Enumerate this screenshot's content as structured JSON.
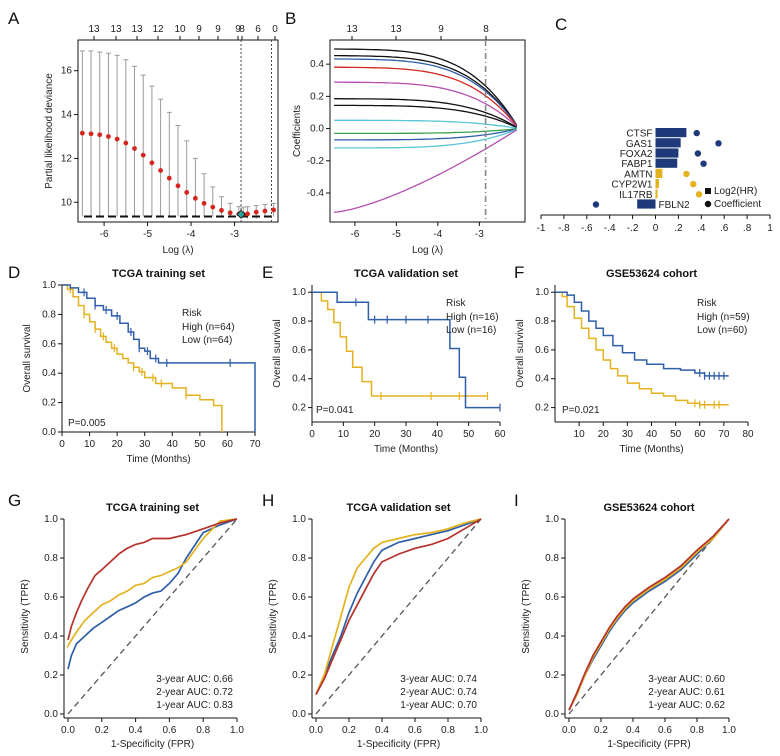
{
  "colors": {
    "blue": "#2f5fa8",
    "yellow": "#e4b21e",
    "red": "#b5312c",
    "navy": "#1f3a7a",
    "gray": "#8a8a8a",
    "black": "#111111"
  },
  "panels": {
    "A": {
      "label": "A",
      "chart_data": {
        "type": "line",
        "top_ticks": [
          "13",
          "13",
          "13",
          "12",
          "10",
          "9",
          "9",
          "9",
          "8",
          "6",
          "0"
        ],
        "xlabel": "Log (λ)",
        "ylabel": "Partial likelihood deviance",
        "xlim": [
          -6.6,
          -2.0
        ],
        "ylim": [
          9.1,
          17.4
        ],
        "x_ticks": [
          "-6",
          "-5",
          "-4",
          "-3"
        ],
        "y_ticks": [
          "10",
          "12",
          "14",
          "16"
        ],
        "x": [
          -6.5,
          -6.3,
          -6.1,
          -5.9,
          -5.7,
          -5.5,
          -5.3,
          -5.1,
          -4.9,
          -4.7,
          -4.5,
          -4.3,
          -4.1,
          -3.9,
          -3.7,
          -3.5,
          -3.3,
          -3.1,
          -2.9,
          -2.8,
          -2.7,
          -2.5,
          -2.3,
          -2.1
        ],
        "mean": [
          13.15,
          13.12,
          13.08,
          13.0,
          12.88,
          12.7,
          12.45,
          12.15,
          11.8,
          11.45,
          11.1,
          10.75,
          10.45,
          10.18,
          9.95,
          9.78,
          9.63,
          9.52,
          9.46,
          9.45,
          9.47,
          9.55,
          9.6,
          9.65
        ],
        "upper": [
          16.9,
          16.9,
          16.85,
          16.8,
          16.7,
          16.5,
          16.2,
          15.8,
          15.3,
          14.7,
          14.1,
          13.5,
          12.8,
          12.0,
          11.3,
          10.7,
          10.25,
          9.95,
          9.8,
          9.78,
          9.8,
          9.85,
          9.9,
          9.95
        ],
        "lower": [
          9.35,
          9.35,
          9.35,
          9.35,
          9.35,
          9.35,
          9.35,
          9.35,
          9.35,
          9.35,
          9.35,
          9.35,
          9.35,
          9.35,
          9.35,
          9.35,
          9.35,
          9.35,
          9.35,
          9.3,
          9.25,
          9.25,
          9.3,
          9.35
        ],
        "vlines": [
          -2.85,
          -2.15
        ],
        "marked_min": -2.85
      }
    },
    "B": {
      "label": "B",
      "chart_data": {
        "type": "line",
        "top_ticks": [
          "13",
          "13",
          "9",
          "8"
        ],
        "xlabel": "Log (λ)",
        "ylabel": "Coefficients",
        "xlim": [
          -6.6,
          -1.9
        ],
        "ylim": [
          -0.58,
          0.55
        ],
        "x_ticks": [
          "-6",
          "-5",
          "-4",
          "-3"
        ],
        "y_ticks": [
          "0.4",
          "0.2",
          "0.0",
          "-0.2",
          "-0.4"
        ],
        "vline": -2.85
      }
    },
    "C": {
      "label": "C",
      "chart_data": {
        "type": "bar",
        "genes": [
          "CTSF",
          "GAS1",
          "FOXA2",
          "FABP1",
          "AMTN",
          "CYP2W1",
          "IL17RB",
          "FBLN2"
        ],
        "log2hr": [
          0.27,
          0.22,
          0.2,
          0.19,
          0.06,
          0.03,
          0.01,
          -0.16
        ],
        "coefficient": [
          0.36,
          0.55,
          0.37,
          0.42,
          0.27,
          0.33,
          0.38,
          -0.52
        ],
        "x_ticks": [
          "-1",
          "-.8",
          "-.6",
          "-.4",
          "-.2",
          "0",
          ".2",
          ".4",
          ".6",
          ".8",
          "1"
        ],
        "xlim": [
          -1,
          1
        ],
        "legend": [
          "Log2(HR)",
          "Coefficient"
        ]
      }
    },
    "D": {
      "label": "D",
      "chart_data": {
        "type": "line",
        "title": "TCGA training set",
        "xlabel": "Time (Months)",
        "ylabel": "Overall survival",
        "xlim": [
          0,
          70
        ],
        "ylim": [
          0,
          1
        ],
        "x_ticks": [
          "0",
          "10",
          "20",
          "30",
          "40",
          "50",
          "60",
          "70"
        ],
        "y_ticks": [
          "0.0",
          "0.2",
          "0.4",
          "0.6",
          "0.8",
          "1.0"
        ],
        "legend_title": "Risk",
        "series": [
          {
            "name": "High (n=64)",
            "color": "yellow",
            "x": [
              0,
              2,
              4,
              6,
              8,
              10,
              12,
              14,
              16,
              18,
              20,
              22,
              24,
              26,
              28,
              30,
              34,
              40,
              45,
              50,
              55,
              58
            ],
            "y": [
              1.0,
              0.97,
              0.92,
              0.86,
              0.8,
              0.75,
              0.7,
              0.65,
              0.61,
              0.57,
              0.53,
              0.5,
              0.47,
              0.44,
              0.41,
              0.37,
              0.33,
              0.3,
              0.25,
              0.22,
              0.18,
              0.0
            ]
          },
          {
            "name": "Low (n=64)",
            "color": "blue",
            "x": [
              0,
              3,
              6,
              9,
              12,
              15,
              18,
              21,
              24,
              26,
              28,
              30,
              32,
              35,
              60,
              70
            ],
            "y": [
              1.0,
              0.98,
              0.95,
              0.91,
              0.86,
              0.83,
              0.79,
              0.74,
              0.68,
              0.63,
              0.57,
              0.55,
              0.5,
              0.47,
              0.47,
              0.0
            ]
          }
        ],
        "pvalue": "P=0.005"
      }
    },
    "E": {
      "label": "E",
      "chart_data": {
        "type": "line",
        "title": "TCGA validation set",
        "xlabel": "Time (Months)",
        "ylabel": "Overall survival",
        "xlim": [
          0,
          60
        ],
        "ylim": [
          0.1,
          1.05
        ],
        "x_ticks": [
          "0",
          "10",
          "20",
          "30",
          "40",
          "50",
          "60"
        ],
        "y_ticks": [
          "0.2",
          "0.4",
          "0.6",
          "0.8",
          "1.0"
        ],
        "legend_title": "Risk",
        "series": [
          {
            "name": "High (n=16)",
            "color": "yellow",
            "x": [
              0,
              3,
              5,
              7,
              9,
              11,
              13,
              16,
              19,
              56
            ],
            "y": [
              1.0,
              0.94,
              0.88,
              0.79,
              0.69,
              0.59,
              0.48,
              0.38,
              0.28,
              0.28
            ]
          },
          {
            "name": "Low (n=16)",
            "color": "blue",
            "x": [
              0,
              5,
              8,
              18,
              40,
              44,
              47,
              49,
              60
            ],
            "y": [
              1.0,
              1.0,
              0.93,
              0.81,
              0.81,
              0.61,
              0.41,
              0.2,
              0.2
            ]
          }
        ],
        "pvalue": "P=0.041"
      }
    },
    "F": {
      "label": "F",
      "chart_data": {
        "type": "line",
        "title": "GSE53624 cohort",
        "xlabel": "Time (Months)",
        "ylabel": "Overall survival",
        "xlim": [
          0,
          80
        ],
        "ylim": [
          0.1,
          1.05
        ],
        "x_ticks": [
          "10",
          "20",
          "30",
          "40",
          "50",
          "60",
          "70",
          "80"
        ],
        "y_ticks": [
          "0.2",
          "0.4",
          "0.6",
          "0.8",
          "1.0"
        ],
        "legend_title": "Risk",
        "series": [
          {
            "name": "High (n=59)",
            "color": "yellow",
            "x": [
              0,
              3,
              5,
              8,
              11,
              14,
              17,
              20,
              23,
              26,
              30,
              35,
              40,
              45,
              50,
              55,
              60,
              66,
              72
            ],
            "y": [
              1.0,
              0.97,
              0.9,
              0.82,
              0.75,
              0.68,
              0.6,
              0.53,
              0.47,
              0.42,
              0.37,
              0.33,
              0.3,
              0.28,
              0.25,
              0.23,
              0.22,
              0.22,
              0.22
            ]
          },
          {
            "name": "Low (n=60)",
            "color": "blue",
            "x": [
              0,
              5,
              8,
              11,
              14,
              17,
              20,
              24,
              28,
              33,
              38,
              45,
              52,
              58,
              62,
              72
            ],
            "y": [
              1.0,
              0.98,
              0.93,
              0.87,
              0.8,
              0.75,
              0.7,
              0.63,
              0.58,
              0.53,
              0.5,
              0.47,
              0.46,
              0.44,
              0.42,
              0.42
            ]
          }
        ],
        "pvalue": "P=0.021"
      }
    },
    "G": {
      "label": "G",
      "chart_data": {
        "type": "line",
        "title": "TCGA training set",
        "xlabel": "1-Specificity (FPR)",
        "ylabel": "Sensitivity (TPR)",
        "xlim": [
          0,
          1
        ],
        "ylim": [
          0,
          1
        ],
        "x_ticks": [
          "0.0",
          "0.2",
          "0.4",
          "0.6",
          "0.8",
          "1.0"
        ],
        "y_ticks": [
          "0.0",
          "0.2",
          "0.4",
          "0.6",
          "0.8",
          "1.0"
        ],
        "series": [
          {
            "name": "3-year AUC: 0.66",
            "color": "blue",
            "x": [
              0,
              0.02,
              0.05,
              0.1,
              0.15,
              0.2,
              0.25,
              0.3,
              0.35,
              0.4,
              0.45,
              0.5,
              0.55,
              0.6,
              0.65,
              0.7,
              0.8,
              0.9,
              1.0
            ],
            "y": [
              0.23,
              0.3,
              0.36,
              0.4,
              0.44,
              0.47,
              0.5,
              0.53,
              0.55,
              0.57,
              0.6,
              0.62,
              0.63,
              0.67,
              0.72,
              0.8,
              0.93,
              0.97,
              1.0
            ]
          },
          {
            "name": "2-year AUC: 0.72",
            "color": "yellow",
            "x": [
              0,
              0.02,
              0.05,
              0.1,
              0.15,
              0.2,
              0.25,
              0.3,
              0.35,
              0.4,
              0.45,
              0.5,
              0.55,
              0.6,
              0.65,
              0.7,
              0.8,
              0.9,
              1.0
            ],
            "y": [
              0.35,
              0.38,
              0.42,
              0.48,
              0.52,
              0.56,
              0.58,
              0.61,
              0.63,
              0.66,
              0.67,
              0.7,
              0.71,
              0.73,
              0.75,
              0.78,
              0.9,
              0.99,
              1.0
            ]
          },
          {
            "name": "1-year AUC: 0.83",
            "color": "red",
            "x": [
              0,
              0.02,
              0.05,
              0.08,
              0.12,
              0.16,
              0.2,
              0.25,
              0.3,
              0.35,
              0.4,
              0.45,
              0.5,
              0.6,
              0.7,
              0.8,
              0.9,
              1.0
            ],
            "y": [
              0.38,
              0.45,
              0.52,
              0.58,
              0.65,
              0.71,
              0.74,
              0.78,
              0.82,
              0.85,
              0.87,
              0.88,
              0.9,
              0.9,
              0.92,
              0.95,
              0.98,
              1.0
            ]
          }
        ]
      }
    },
    "H": {
      "label": "H",
      "chart_data": {
        "type": "line",
        "title": "TCGA validation set",
        "xlabel": "1-Specificity (FPR)",
        "ylabel": "Sensitivity (TPR)",
        "xlim": [
          0,
          1
        ],
        "ylim": [
          0,
          1
        ],
        "x_ticks": [
          "0.0",
          "0.2",
          "0.4",
          "0.6",
          "0.8",
          "1.0"
        ],
        "y_ticks": [
          "0.0",
          "0.2",
          "0.4",
          "0.6",
          "0.8",
          "1.0"
        ],
        "series": [
          {
            "name": "3-year AUC: 0.74",
            "color": "blue",
            "x": [
              0,
              0.05,
              0.1,
              0.15,
              0.2,
              0.25,
              0.3,
              0.35,
              0.4,
              0.5,
              0.6,
              0.7,
              0.8,
              0.9,
              1.0
            ],
            "y": [
              0.1,
              0.2,
              0.3,
              0.4,
              0.52,
              0.62,
              0.7,
              0.78,
              0.84,
              0.88,
              0.9,
              0.92,
              0.94,
              0.97,
              1.0
            ]
          },
          {
            "name": "2-year AUC: 0.74",
            "color": "yellow",
            "x": [
              0,
              0.05,
              0.1,
              0.15,
              0.2,
              0.25,
              0.3,
              0.35,
              0.4,
              0.5,
              0.6,
              0.7,
              0.8,
              0.9,
              1.0
            ],
            "y": [
              0.1,
              0.2,
              0.35,
              0.5,
              0.65,
              0.75,
              0.8,
              0.85,
              0.88,
              0.9,
              0.92,
              0.93,
              0.95,
              0.98,
              1.0
            ]
          },
          {
            "name": "1-year AUC: 0.70",
            "color": "red",
            "x": [
              0,
              0.05,
              0.1,
              0.15,
              0.2,
              0.25,
              0.3,
              0.35,
              0.4,
              0.5,
              0.6,
              0.7,
              0.8,
              0.9,
              1.0
            ],
            "y": [
              0.1,
              0.18,
              0.28,
              0.38,
              0.48,
              0.56,
              0.64,
              0.72,
              0.78,
              0.82,
              0.85,
              0.87,
              0.9,
              0.95,
              1.0
            ]
          }
        ]
      }
    },
    "I": {
      "label": "I",
      "chart_data": {
        "type": "line",
        "title": "GSE53624 cohort",
        "xlabel": "1-Specificity (FPR)",
        "ylabel": "Sensitivity (TPR)",
        "xlim": [
          0,
          1
        ],
        "ylim": [
          0,
          1
        ],
        "x_ticks": [
          "0.0",
          "0.2",
          "0.4",
          "0.6",
          "0.8",
          "1.0"
        ],
        "y_ticks": [
          "0.0",
          "0.2",
          "0.4",
          "0.6",
          "0.8",
          "1.0"
        ],
        "series": [
          {
            "name": "3-year AUC: 0.60",
            "color": "blue",
            "x": [
              0,
              0.05,
              0.1,
              0.15,
              0.2,
              0.25,
              0.3,
              0.35,
              0.4,
              0.5,
              0.6,
              0.7,
              0.8,
              0.9,
              1.0
            ],
            "y": [
              0.02,
              0.1,
              0.2,
              0.28,
              0.35,
              0.42,
              0.48,
              0.53,
              0.57,
              0.63,
              0.68,
              0.74,
              0.82,
              0.9,
              1.0
            ]
          },
          {
            "name": "2-year AUC: 0.61",
            "color": "yellow",
            "x": [
              0,
              0.05,
              0.1,
              0.15,
              0.2,
              0.25,
              0.3,
              0.35,
              0.4,
              0.5,
              0.6,
              0.7,
              0.8,
              0.9,
              1.0
            ],
            "y": [
              0.02,
              0.1,
              0.2,
              0.29,
              0.36,
              0.43,
              0.49,
              0.54,
              0.58,
              0.64,
              0.69,
              0.75,
              0.83,
              0.9,
              1.0
            ]
          },
          {
            "name": "1-year AUC: 0.62",
            "color": "red",
            "x": [
              0,
              0.05,
              0.1,
              0.15,
              0.2,
              0.25,
              0.3,
              0.35,
              0.4,
              0.5,
              0.6,
              0.7,
              0.8,
              0.9,
              1.0
            ],
            "y": [
              0.02,
              0.11,
              0.21,
              0.3,
              0.37,
              0.44,
              0.5,
              0.55,
              0.59,
              0.65,
              0.7,
              0.76,
              0.84,
              0.91,
              1.0
            ]
          }
        ]
      }
    }
  }
}
